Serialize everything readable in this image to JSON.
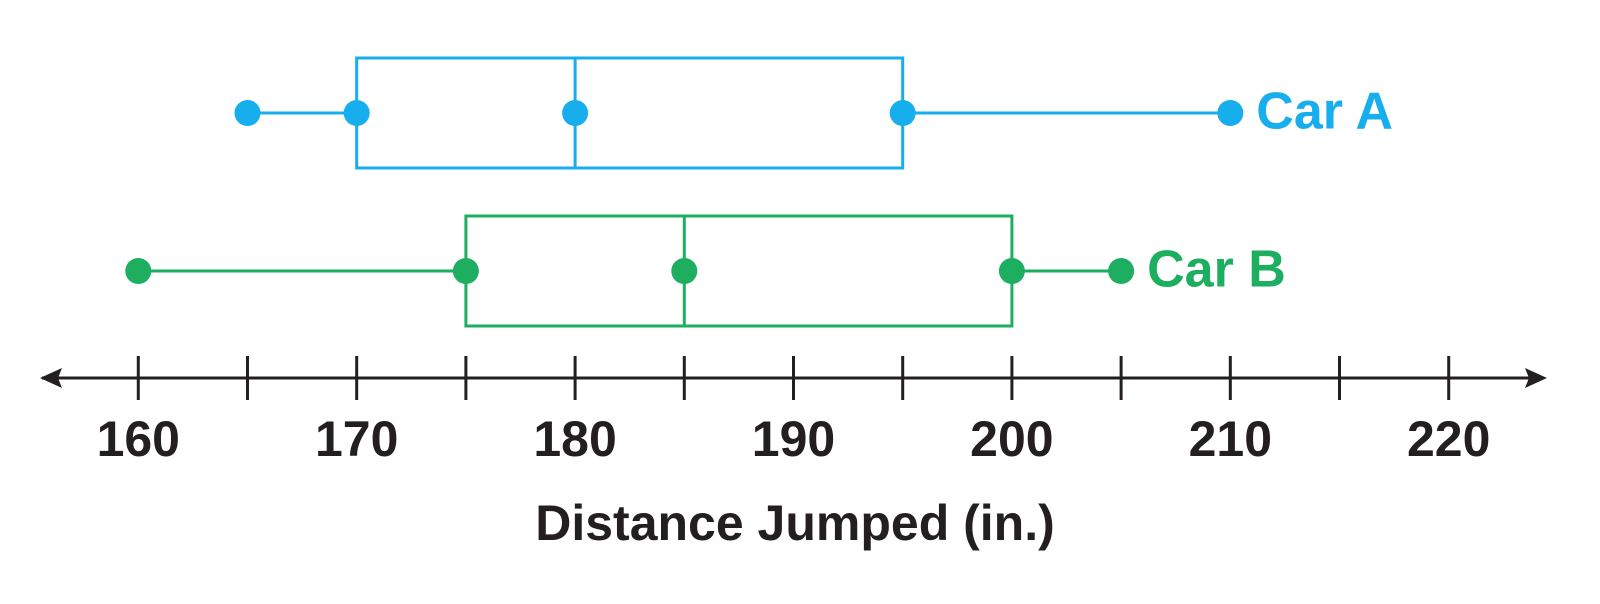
{
  "chart_data": {
    "type": "box",
    "x_label": "Distance Jumped (in.)",
    "xlim": [
      155.5,
      224.5
    ],
    "xticks": [
      160,
      170,
      180,
      190,
      200,
      210,
      220
    ],
    "minor_xticks": [
      165,
      175,
      185,
      195,
      205,
      215
    ],
    "series": [
      {
        "name": "Car A",
        "color": "#17aeee",
        "min": 165,
        "q1": 170,
        "median": 180,
        "q3": 195,
        "max": 210
      },
      {
        "name": "Car B",
        "color": "#1eae60",
        "min": 160,
        "q1": 175,
        "median": 185,
        "q3": 200,
        "max": 205
      }
    ]
  }
}
